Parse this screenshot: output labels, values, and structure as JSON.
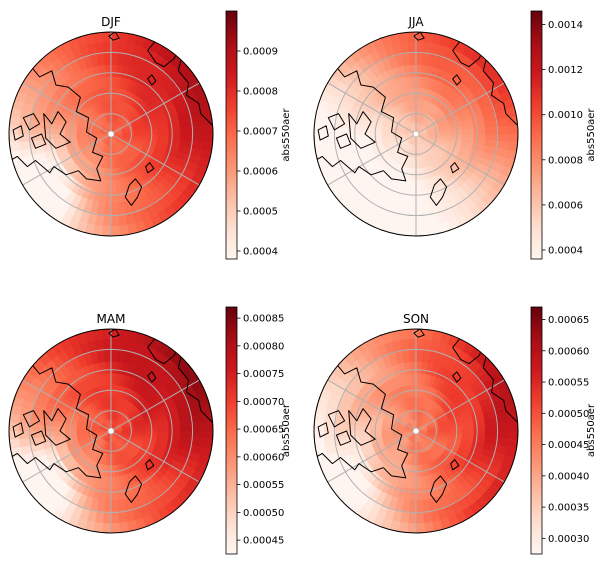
{
  "figure": {
    "colormap": "Reds",
    "colormap_stops": [
      "#fff5f0",
      "#fee0d2",
      "#fcbba1",
      "#fc9272",
      "#fb6a4a",
      "#ef3b2c",
      "#cb181d",
      "#a50f15",
      "#67000d"
    ],
    "coastline_color": "#000000",
    "grid_color": "#b0b0b0",
    "projection": "north-polar-stereographic"
  },
  "panels": [
    {
      "title": "DJF",
      "colorbar": {
        "label": "abs550aer",
        "min": 0.00038,
        "max": 0.001,
        "ticks": [
          "0.0004",
          "0.0005",
          "0.0006",
          "0.0007",
          "0.0008",
          "0.0009"
        ],
        "tick_values": [
          0.0004,
          0.0005,
          0.0006,
          0.0007,
          0.0008,
          0.0009
        ]
      },
      "field": {
        "base": 0.0007,
        "gradient": 0.00022,
        "dir_deg": 25,
        "atl_low": 0.0003,
        "spread": 4e-05
      }
    },
    {
      "title": "JJA",
      "colorbar": {
        "label": "abs550aer",
        "min": 0.00036,
        "max": 0.00146,
        "ticks": [
          "0.0004",
          "0.0006",
          "0.0008",
          "0.0010",
          "0.0012",
          "0.0014"
        ],
        "tick_values": [
          0.0004,
          0.0006,
          0.0008,
          0.001,
          0.0012,
          0.0014
        ]
      },
      "field": {
        "base": 0.0006,
        "gradient": 0.00055,
        "dir_deg": 50,
        "atl_low": 0.00018,
        "spread": 6e-05
      }
    },
    {
      "title": "MAM",
      "colorbar": {
        "label": "abs550aer",
        "min": 0.000425,
        "max": 0.00087,
        "ticks": [
          "0.00045",
          "0.00050",
          "0.00055",
          "0.00060",
          "0.00065",
          "0.00070",
          "0.00075",
          "0.00080",
          "0.00085"
        ],
        "tick_values": [
          0.00045,
          0.0005,
          0.00055,
          0.0006,
          0.00065,
          0.0007,
          0.00075,
          0.0008,
          0.00085
        ]
      },
      "field": {
        "base": 0.00068,
        "gradient": 0.00016,
        "dir_deg": 35,
        "atl_low": 0.00022,
        "spread": 4e-05
      }
    },
    {
      "title": "SON",
      "colorbar": {
        "label": "abs550aer",
        "min": 0.000275,
        "max": 0.00067,
        "ticks": [
          "0.00030",
          "0.00035",
          "0.00040",
          "0.00045",
          "0.00050",
          "0.00055",
          "0.00060",
          "0.00065"
        ],
        "tick_values": [
          0.0003,
          0.00035,
          0.0004,
          0.00045,
          0.0005,
          0.00055,
          0.0006,
          0.00065
        ]
      },
      "field": {
        "base": 0.00045,
        "gradient": 0.00016,
        "dir_deg": 10,
        "atl_low": 0.0001,
        "spread": 4e-05
      }
    }
  ]
}
